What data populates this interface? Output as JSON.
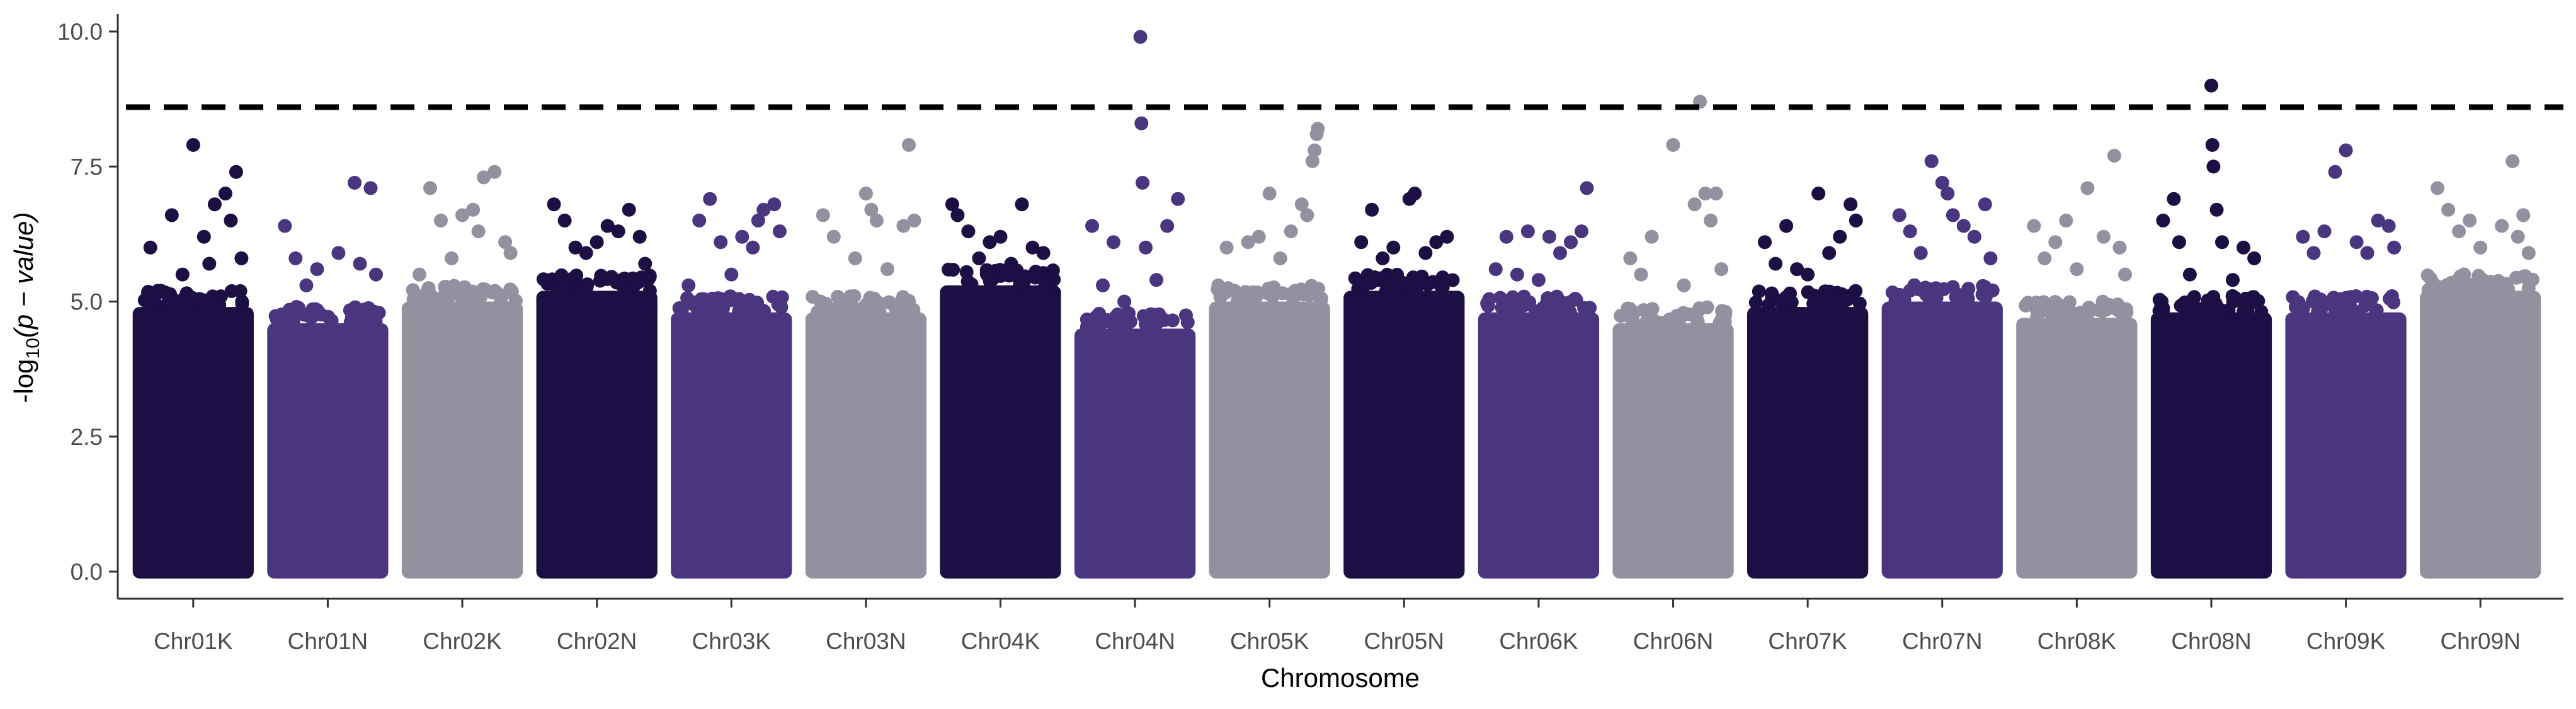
{
  "chart_data": {
    "type": "scatter",
    "subtype": "manhattan",
    "xlabel": "Chromosome",
    "ylabel_prefix": "-log",
    "ylabel_sub": "10",
    "ylabel_suffix": "(p − value)",
    "ylim": [
      -0.2,
      10.2
    ],
    "yticks": [
      0.0,
      2.5,
      5.0,
      7.5,
      10.0
    ],
    "ytick_labels": [
      "0.0",
      "2.5",
      "5.0",
      "7.5",
      "10.0"
    ],
    "threshold": 8.6,
    "grid": false,
    "legend": "none",
    "colors": [
      "#1c0f44",
      "#4a367f",
      "#9390a0"
    ],
    "categories": [
      "Chr01K",
      "Chr01N",
      "Chr02K",
      "Chr02N",
      "Chr03K",
      "Chr03N",
      "Chr04K",
      "Chr04N",
      "Chr05K",
      "Chr05N",
      "Chr06K",
      "Chr06N",
      "Chr07K",
      "Chr07N",
      "Chr08K",
      "Chr08N",
      "Chr09K",
      "Chr09N"
    ],
    "series": [
      {
        "category": "Chr01K",
        "color": "#1c0f44",
        "bulk_top": 4.9,
        "points": [
          [
            0.1,
            6.0
          ],
          [
            0.3,
            6.6
          ],
          [
            0.5,
            7.9
          ],
          [
            0.6,
            6.2
          ],
          [
            0.7,
            6.8
          ],
          [
            0.8,
            7.0
          ],
          [
            0.85,
            6.5
          ],
          [
            0.9,
            7.4
          ],
          [
            0.4,
            5.5
          ],
          [
            0.2,
            5.2
          ],
          [
            0.95,
            5.8
          ],
          [
            0.65,
            5.7
          ]
        ]
      },
      {
        "category": "Chr01N",
        "color": "#4a367f",
        "bulk_top": 4.6,
        "points": [
          [
            0.1,
            6.4
          ],
          [
            0.2,
            5.8
          ],
          [
            0.4,
            5.6
          ],
          [
            0.75,
            7.2
          ],
          [
            0.9,
            7.1
          ],
          [
            0.6,
            5.9
          ],
          [
            0.3,
            5.3
          ],
          [
            0.8,
            5.7
          ],
          [
            0.95,
            5.5
          ]
        ]
      },
      {
        "category": "Chr02K",
        "color": "#9390a0",
        "bulk_top": 5.0,
        "points": [
          [
            0.2,
            7.1
          ],
          [
            0.3,
            6.5
          ],
          [
            0.5,
            6.6
          ],
          [
            0.6,
            6.7
          ],
          [
            0.65,
            6.3
          ],
          [
            0.7,
            7.3
          ],
          [
            0.8,
            7.4
          ],
          [
            0.9,
            6.1
          ],
          [
            0.4,
            5.8
          ],
          [
            0.1,
            5.5
          ],
          [
            0.95,
            5.9
          ]
        ]
      },
      {
        "category": "Chr02N",
        "color": "#1c0f44",
        "bulk_top": 5.2,
        "points": [
          [
            0.1,
            6.8
          ],
          [
            0.2,
            6.5
          ],
          [
            0.3,
            6.0
          ],
          [
            0.5,
            6.1
          ],
          [
            0.6,
            6.4
          ],
          [
            0.7,
            6.3
          ],
          [
            0.8,
            6.7
          ],
          [
            0.9,
            6.2
          ],
          [
            0.4,
            5.9
          ],
          [
            0.95,
            5.7
          ]
        ]
      },
      {
        "category": "Chr03K",
        "color": "#4a367f",
        "bulk_top": 4.8,
        "points": [
          [
            0.2,
            6.5
          ],
          [
            0.3,
            6.9
          ],
          [
            0.4,
            6.1
          ],
          [
            0.6,
            6.2
          ],
          [
            0.7,
            6.0
          ],
          [
            0.75,
            6.5
          ],
          [
            0.8,
            6.7
          ],
          [
            0.9,
            6.8
          ],
          [
            0.5,
            5.5
          ],
          [
            0.1,
            5.3
          ],
          [
            0.95,
            6.3
          ]
        ]
      },
      {
        "category": "Chr03N",
        "color": "#9390a0",
        "bulk_top": 4.8,
        "points": [
          [
            0.1,
            6.6
          ],
          [
            0.2,
            6.2
          ],
          [
            0.5,
            7.0
          ],
          [
            0.55,
            6.7
          ],
          [
            0.6,
            6.5
          ],
          [
            0.85,
            6.4
          ],
          [
            0.9,
            7.9
          ],
          [
            0.4,
            5.8
          ],
          [
            0.7,
            5.6
          ],
          [
            0.95,
            6.5
          ]
        ]
      },
      {
        "category": "Chr04K",
        "color": "#1c0f44",
        "bulk_top": 5.3,
        "points": [
          [
            0.05,
            6.8
          ],
          [
            0.1,
            6.6
          ],
          [
            0.2,
            6.3
          ],
          [
            0.4,
            6.1
          ],
          [
            0.5,
            6.2
          ],
          [
            0.7,
            6.8
          ],
          [
            0.8,
            6.0
          ],
          [
            0.9,
            5.9
          ],
          [
            0.3,
            5.8
          ],
          [
            0.6,
            5.7
          ]
        ]
      },
      {
        "category": "Chr04N",
        "color": "#4a367f",
        "bulk_top": 4.5,
        "points": [
          [
            0.1,
            6.4
          ],
          [
            0.3,
            6.1
          ],
          [
            0.55,
            9.9
          ],
          [
            0.56,
            8.3
          ],
          [
            0.57,
            7.2
          ],
          [
            0.6,
            6.0
          ],
          [
            0.8,
            6.4
          ],
          [
            0.9,
            6.9
          ],
          [
            0.2,
            5.3
          ],
          [
            0.4,
            5.0
          ],
          [
            0.7,
            5.4
          ]
        ]
      },
      {
        "category": "Chr05K",
        "color": "#9390a0",
        "bulk_top": 5.0,
        "points": [
          [
            0.1,
            6.0
          ],
          [
            0.3,
            6.1
          ],
          [
            0.4,
            6.2
          ],
          [
            0.5,
            7.0
          ],
          [
            0.7,
            6.3
          ],
          [
            0.8,
            6.8
          ],
          [
            0.9,
            7.6
          ],
          [
            0.92,
            7.8
          ],
          [
            0.94,
            8.1
          ],
          [
            0.95,
            8.2
          ],
          [
            0.85,
            6.6
          ],
          [
            0.6,
            5.8
          ]
        ]
      },
      {
        "category": "Chr05N",
        "color": "#1c0f44",
        "bulk_top": 5.2,
        "points": [
          [
            0.1,
            6.1
          ],
          [
            0.2,
            6.7
          ],
          [
            0.4,
            6.0
          ],
          [
            0.55,
            6.9
          ],
          [
            0.6,
            7.0
          ],
          [
            0.8,
            6.1
          ],
          [
            0.9,
            6.2
          ],
          [
            0.3,
            5.8
          ],
          [
            0.7,
            5.9
          ]
        ]
      },
      {
        "category": "Chr06K",
        "color": "#4a367f",
        "bulk_top": 4.8,
        "points": [
          [
            0.1,
            5.6
          ],
          [
            0.2,
            6.2
          ],
          [
            0.4,
            6.3
          ],
          [
            0.6,
            6.2
          ],
          [
            0.7,
            5.9
          ],
          [
            0.8,
            6.1
          ],
          [
            0.9,
            6.3
          ],
          [
            0.95,
            7.1
          ],
          [
            0.3,
            5.5
          ],
          [
            0.5,
            5.4
          ]
        ]
      },
      {
        "category": "Chr06N",
        "color": "#9390a0",
        "bulk_top": 4.6,
        "points": [
          [
            0.1,
            5.8
          ],
          [
            0.3,
            6.2
          ],
          [
            0.5,
            7.9
          ],
          [
            0.7,
            6.8
          ],
          [
            0.75,
            8.7
          ],
          [
            0.8,
            7.0
          ],
          [
            0.85,
            6.5
          ],
          [
            0.9,
            7.0
          ],
          [
            0.2,
            5.5
          ],
          [
            0.6,
            5.3
          ],
          [
            0.95,
            5.6
          ]
        ]
      },
      {
        "category": "Chr07K",
        "color": "#1c0f44",
        "bulk_top": 4.9,
        "points": [
          [
            0.1,
            6.1
          ],
          [
            0.2,
            5.7
          ],
          [
            0.3,
            6.4
          ],
          [
            0.6,
            7.0
          ],
          [
            0.7,
            5.9
          ],
          [
            0.8,
            6.2
          ],
          [
            0.9,
            6.8
          ],
          [
            0.95,
            6.5
          ],
          [
            0.4,
            5.6
          ],
          [
            0.5,
            5.5
          ]
        ]
      },
      {
        "category": "Chr07N",
        "color": "#4a367f",
        "bulk_top": 5.0,
        "points": [
          [
            0.1,
            6.6
          ],
          [
            0.2,
            6.3
          ],
          [
            0.4,
            7.6
          ],
          [
            0.5,
            7.2
          ],
          [
            0.55,
            7.0
          ],
          [
            0.6,
            6.6
          ],
          [
            0.7,
            6.4
          ],
          [
            0.8,
            6.2
          ],
          [
            0.9,
            6.8
          ],
          [
            0.3,
            5.9
          ],
          [
            0.95,
            5.8
          ]
        ]
      },
      {
        "category": "Chr08K",
        "color": "#9390a0",
        "bulk_top": 4.7,
        "points": [
          [
            0.1,
            6.4
          ],
          [
            0.2,
            5.8
          ],
          [
            0.3,
            6.1
          ],
          [
            0.4,
            6.5
          ],
          [
            0.6,
            7.1
          ],
          [
            0.75,
            6.2
          ],
          [
            0.85,
            7.7
          ],
          [
            0.9,
            6.0
          ],
          [
            0.5,
            5.6
          ],
          [
            0.95,
            5.5
          ]
        ]
      },
      {
        "category": "Chr08N",
        "color": "#1c0f44",
        "bulk_top": 4.8,
        "points": [
          [
            0.05,
            6.5
          ],
          [
            0.15,
            6.9
          ],
          [
            0.2,
            6.1
          ],
          [
            0.5,
            9.0
          ],
          [
            0.51,
            7.9
          ],
          [
            0.52,
            7.5
          ],
          [
            0.55,
            6.7
          ],
          [
            0.6,
            6.1
          ],
          [
            0.8,
            6.0
          ],
          [
            0.9,
            5.8
          ],
          [
            0.3,
            5.5
          ],
          [
            0.7,
            5.4
          ]
        ]
      },
      {
        "category": "Chr09K",
        "color": "#4a367f",
        "bulk_top": 4.8,
        "points": [
          [
            0.1,
            6.2
          ],
          [
            0.2,
            5.9
          ],
          [
            0.3,
            6.3
          ],
          [
            0.4,
            7.4
          ],
          [
            0.5,
            7.8
          ],
          [
            0.6,
            6.1
          ],
          [
            0.7,
            5.9
          ],
          [
            0.8,
            6.5
          ],
          [
            0.9,
            6.4
          ],
          [
            0.95,
            6.0
          ]
        ]
      },
      {
        "category": "Chr09N",
        "color": "#9390a0",
        "bulk_top": 5.2,
        "points": [
          [
            0.1,
            7.1
          ],
          [
            0.2,
            6.7
          ],
          [
            0.3,
            6.3
          ],
          [
            0.4,
            6.5
          ],
          [
            0.5,
            6.0
          ],
          [
            0.7,
            6.4
          ],
          [
            0.8,
            7.6
          ],
          [
            0.85,
            6.2
          ],
          [
            0.9,
            6.6
          ],
          [
            0.95,
            5.9
          ]
        ]
      }
    ]
  }
}
